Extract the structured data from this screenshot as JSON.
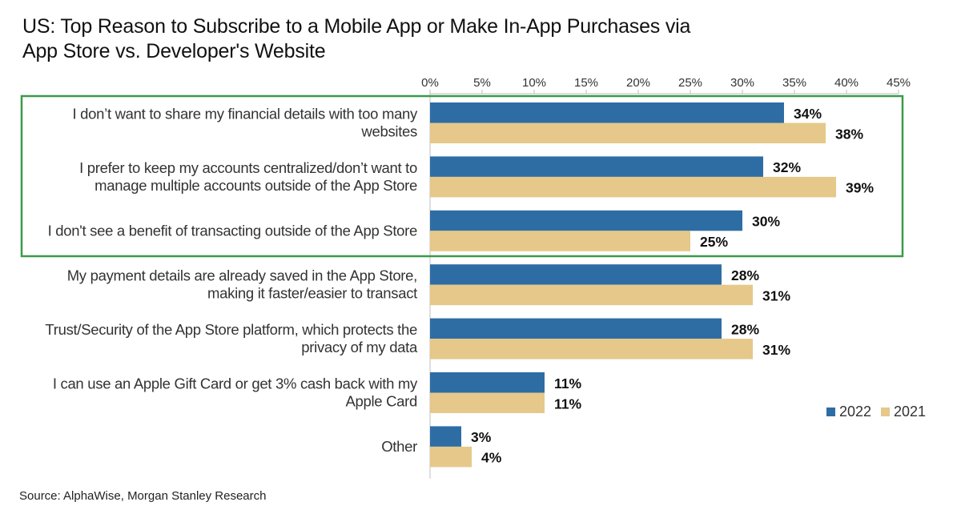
{
  "title": {
    "line1": "US: Top Reason to Subscribe to a Mobile App or Make In-App Purchases via",
    "line2": "App Store vs. Developer's Website"
  },
  "source": "Source: AlphaWise, Morgan Stanley Research",
  "colors": {
    "series_2022": "#2e6da4",
    "series_2021": "#e5c88a",
    "highlight_box": "#3a9a4a",
    "axis": "#bfbfbf",
    "text": "#333333",
    "value_label": "#111111"
  },
  "chart_data": {
    "type": "bar",
    "orientation": "horizontal",
    "title": "US: Top Reason to Subscribe to a Mobile App or Make In-App Purchases via App Store vs. Developer's Website",
    "xlabel": "",
    "ylabel": "",
    "xlim": [
      0,
      45
    ],
    "x_ticks": [
      0,
      5,
      10,
      15,
      20,
      25,
      30,
      35,
      40,
      45
    ],
    "tick_format": "{v}%",
    "axis_position": "top",
    "grid": false,
    "legend_position": "bottom-right",
    "highlight": "box around first three categories",
    "categories": [
      [
        "I don’t want to share my financial details with too many",
        "websites"
      ],
      [
        "I prefer to keep my accounts centralized/don’t want to",
        "manage multiple accounts outside of the App Store"
      ],
      [
        "I don't see a benefit of transacting outside of the App Store"
      ],
      [
        "My payment details are already saved in the App Store,",
        "making it faster/easier to transact"
      ],
      [
        "Trust/Security of the App Store platform, which protects the",
        "privacy of my data"
      ],
      [
        "I can use an Apple Gift Card or get 3% cash back with my",
        "Apple Card"
      ],
      [
        "Other"
      ]
    ],
    "series": [
      {
        "name": "2022",
        "values": [
          34,
          32,
          30,
          28,
          28,
          11,
          3
        ],
        "labels": [
          "34%",
          "32%",
          "30%",
          "28%",
          "28%",
          "11%",
          "3%"
        ]
      },
      {
        "name": "2021",
        "values": [
          38,
          39,
          25,
          31,
          31,
          11,
          4
        ],
        "labels": [
          "38%",
          "39%",
          "25%",
          "31%",
          "31%",
          "11%",
          "4%"
        ]
      }
    ]
  }
}
